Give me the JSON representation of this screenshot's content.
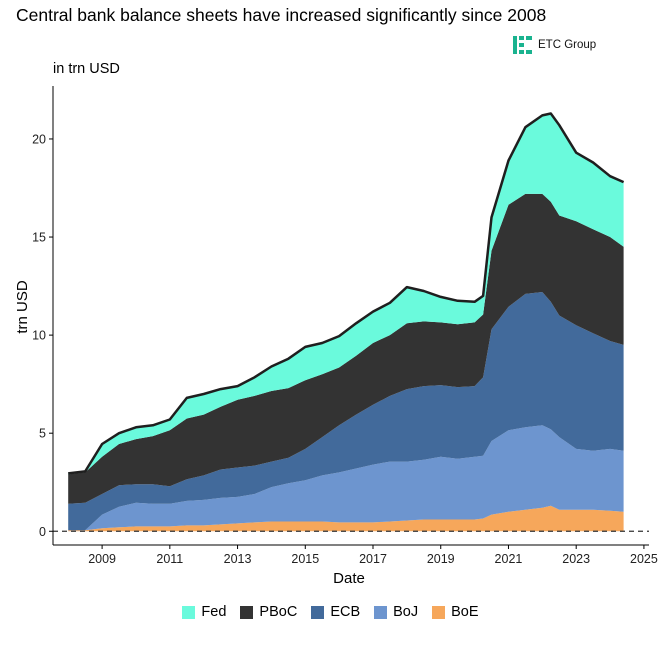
{
  "header": {
    "title": "Central bank balance sheets have increased significantly since 2008",
    "subtitle": "in trn USD",
    "logo_text": "ETC Group",
    "logo_color": "#1ab38f"
  },
  "chart_data": {
    "type": "area",
    "stacked": true,
    "title": "Central bank balance sheets have increased significantly since 2008",
    "subtitle": "in trn USD",
    "xlabel": "Date",
    "ylabel": "trn USD",
    "xlim": [
      2007.55,
      2025.15
    ],
    "ylim": [
      -0.7,
      22.7
    ],
    "x_ticks": [
      2009,
      2011,
      2013,
      2015,
      2017,
      2019,
      2021,
      2023,
      2025
    ],
    "x_tick_labels": [
      "2009",
      "2011",
      "2013",
      "2015",
      "2017",
      "2019",
      "2021",
      "2023",
      "2025"
    ],
    "y_ticks": [
      0,
      5,
      10,
      15,
      20
    ],
    "y_tick_labels": [
      "0",
      "5",
      "10",
      "15",
      "20"
    ],
    "reference_line": {
      "y": 0,
      "style": "dashed"
    },
    "legend_position": "bottom",
    "x": [
      2008.0,
      2008.5,
      2009.0,
      2009.5,
      2010.0,
      2010.5,
      2011.0,
      2011.5,
      2012.0,
      2012.5,
      2013.0,
      2013.5,
      2014.0,
      2014.5,
      2015.0,
      2015.5,
      2016.0,
      2016.5,
      2017.0,
      2017.5,
      2018.0,
      2018.5,
      2019.0,
      2019.5,
      2020.0,
      2020.25,
      2020.5,
      2021.0,
      2021.5,
      2022.0,
      2022.25,
      2022.5,
      2023.0,
      2023.5,
      2024.0,
      2024.4
    ],
    "series": [
      {
        "name": "BoE",
        "color": "#f6a75b",
        "values": [
          0.05,
          0.05,
          0.15,
          0.2,
          0.25,
          0.25,
          0.25,
          0.3,
          0.3,
          0.35,
          0.4,
          0.45,
          0.5,
          0.5,
          0.5,
          0.5,
          0.45,
          0.45,
          0.45,
          0.5,
          0.55,
          0.6,
          0.6,
          0.6,
          0.6,
          0.65,
          0.85,
          1.0,
          1.1,
          1.2,
          1.3,
          1.1,
          1.1,
          1.1,
          1.05,
          1.0
        ]
      },
      {
        "name": "BoJ",
        "color": "#6d95cf",
        "values": [
          0.0,
          0.0,
          0.7,
          1.05,
          1.2,
          1.15,
          1.15,
          1.25,
          1.3,
          1.35,
          1.35,
          1.45,
          1.75,
          1.95,
          2.1,
          2.35,
          2.55,
          2.75,
          2.95,
          3.05,
          3.0,
          3.05,
          3.2,
          3.1,
          3.2,
          3.2,
          3.75,
          4.15,
          4.2,
          4.2,
          3.9,
          3.7,
          3.1,
          3.0,
          3.15,
          3.1
        ]
      },
      {
        "name": "ECB",
        "color": "#426a9b",
        "values": [
          1.35,
          1.4,
          1.05,
          1.1,
          0.95,
          1.0,
          0.9,
          1.1,
          1.25,
          1.45,
          1.5,
          1.45,
          1.3,
          1.3,
          1.6,
          1.95,
          2.4,
          2.75,
          3.05,
          3.35,
          3.7,
          3.75,
          3.65,
          3.65,
          3.6,
          4.0,
          5.7,
          6.3,
          6.8,
          6.8,
          6.5,
          6.2,
          6.3,
          6.0,
          5.5,
          5.4
        ]
      },
      {
        "name": "PBoC",
        "color": "#333333",
        "values": [
          1.5,
          1.55,
          1.9,
          2.1,
          2.3,
          2.45,
          2.85,
          3.1,
          3.1,
          3.2,
          3.45,
          3.55,
          3.6,
          3.55,
          3.5,
          3.2,
          2.95,
          3.0,
          3.15,
          3.1,
          3.35,
          3.3,
          3.2,
          3.2,
          3.25,
          3.2,
          4.0,
          5.2,
          5.1,
          5.0,
          5.1,
          5.1,
          5.3,
          5.3,
          5.3,
          5.0
        ]
      },
      {
        "name": "Fed",
        "color": "#6afadc",
        "values": [
          0.05,
          0.05,
          0.65,
          0.55,
          0.6,
          0.55,
          0.55,
          1.05,
          1.05,
          0.9,
          0.7,
          0.95,
          1.25,
          1.5,
          1.7,
          1.6,
          1.6,
          1.65,
          1.6,
          1.65,
          1.85,
          1.55,
          1.3,
          1.2,
          1.05,
          0.95,
          1.7,
          2.25,
          3.4,
          4.0,
          4.5,
          4.6,
          3.5,
          3.4,
          3.1,
          3.3
        ]
      }
    ]
  }
}
